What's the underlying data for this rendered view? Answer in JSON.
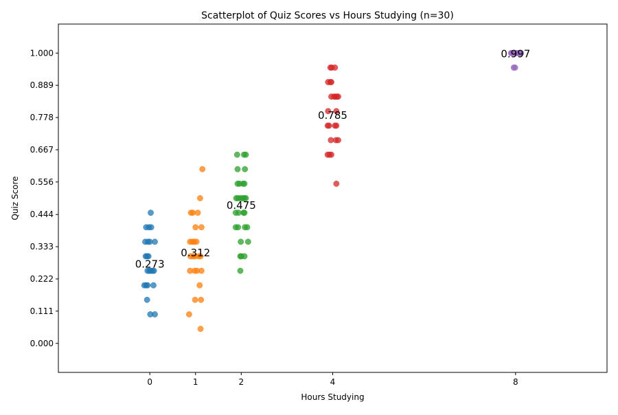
{
  "chart_data": {
    "type": "scatter",
    "title": "Scatterplot of Quiz Scores vs Hours Studying (n=30)",
    "xlabel": "Hours Studying",
    "ylabel": "Quiz Score",
    "xlim": [
      -2,
      10
    ],
    "ylim": [
      -0.1,
      1.1
    ],
    "xticks": [
      0,
      1,
      2,
      4,
      8
    ],
    "yticks": [
      0,
      0.111,
      0.222,
      0.333,
      0.444,
      0.556,
      0.667,
      0.778,
      0.889,
      1.0
    ],
    "ytick_labels": [
      "0.000",
      "0.111",
      "0.222",
      "0.333",
      "0.444",
      "0.556",
      "0.667",
      "0.778",
      "0.889",
      "1.000"
    ],
    "grid": false,
    "series": [
      {
        "x": 0,
        "color": "#1f77b4",
        "mean_label": "0.273",
        "mean": 0.273,
        "points": [
          {
            "x": 0.02,
            "y": 0.45
          },
          {
            "x": -0.08,
            "y": 0.4
          },
          {
            "x": -0.02,
            "y": 0.4
          },
          {
            "x": 0.03,
            "y": 0.4
          },
          {
            "x": -0.1,
            "y": 0.35
          },
          {
            "x": -0.04,
            "y": 0.35
          },
          {
            "x": 0.0,
            "y": 0.35
          },
          {
            "x": 0.11,
            "y": 0.35
          },
          {
            "x": -0.09,
            "y": 0.3
          },
          {
            "x": -0.06,
            "y": 0.3
          },
          {
            "x": -0.03,
            "y": 0.3
          },
          {
            "x": -0.05,
            "y": 0.25
          },
          {
            "x": -0.01,
            "y": 0.25
          },
          {
            "x": 0.02,
            "y": 0.25
          },
          {
            "x": 0.06,
            "y": 0.25
          },
          {
            "x": 0.09,
            "y": 0.25
          },
          {
            "x": -0.12,
            "y": 0.2
          },
          {
            "x": -0.08,
            "y": 0.2
          },
          {
            "x": -0.05,
            "y": 0.2
          },
          {
            "x": 0.08,
            "y": 0.2
          },
          {
            "x": -0.06,
            "y": 0.15
          },
          {
            "x": 0.01,
            "y": 0.1
          },
          {
            "x": 0.11,
            "y": 0.1
          }
        ]
      },
      {
        "x": 1,
        "color": "#ff7f0e",
        "mean_label": "0.312",
        "mean": 0.312,
        "points": [
          {
            "x": 1.15,
            "y": 0.6
          },
          {
            "x": 1.1,
            "y": 0.5
          },
          {
            "x": 0.9,
            "y": 0.45
          },
          {
            "x": 0.94,
            "y": 0.45
          },
          {
            "x": 1.05,
            "y": 0.45
          },
          {
            "x": 1.0,
            "y": 0.4
          },
          {
            "x": 1.13,
            "y": 0.4
          },
          {
            "x": 0.88,
            "y": 0.35
          },
          {
            "x": 0.93,
            "y": 0.35
          },
          {
            "x": 0.97,
            "y": 0.35
          },
          {
            "x": 1.02,
            "y": 0.35
          },
          {
            "x": 0.89,
            "y": 0.3
          },
          {
            "x": 0.95,
            "y": 0.3
          },
          {
            "x": 0.99,
            "y": 0.3
          },
          {
            "x": 1.07,
            "y": 0.3
          },
          {
            "x": 1.11,
            "y": 0.3
          },
          {
            "x": 0.88,
            "y": 0.25
          },
          {
            "x": 0.98,
            "y": 0.25
          },
          {
            "x": 1.03,
            "y": 0.25
          },
          {
            "x": 1.13,
            "y": 0.25
          },
          {
            "x": 1.09,
            "y": 0.2
          },
          {
            "x": 0.99,
            "y": 0.15
          },
          {
            "x": 1.12,
            "y": 0.15
          },
          {
            "x": 0.86,
            "y": 0.1
          },
          {
            "x": 1.11,
            "y": 0.05
          }
        ]
      },
      {
        "x": 2,
        "color": "#2ca02c",
        "mean_label": "0.475",
        "mean": 0.475,
        "points": [
          {
            "x": 1.91,
            "y": 0.65
          },
          {
            "x": 2.06,
            "y": 0.65
          },
          {
            "x": 2.1,
            "y": 0.65
          },
          {
            "x": 1.92,
            "y": 0.6
          },
          {
            "x": 2.08,
            "y": 0.6
          },
          {
            "x": 1.92,
            "y": 0.55
          },
          {
            "x": 1.96,
            "y": 0.55
          },
          {
            "x": 2.04,
            "y": 0.55
          },
          {
            "x": 2.07,
            "y": 0.55
          },
          {
            "x": 1.89,
            "y": 0.5
          },
          {
            "x": 1.93,
            "y": 0.5
          },
          {
            "x": 1.98,
            "y": 0.5
          },
          {
            "x": 2.03,
            "y": 0.5
          },
          {
            "x": 2.07,
            "y": 0.5
          },
          {
            "x": 2.1,
            "y": 0.5
          },
          {
            "x": 1.88,
            "y": 0.45
          },
          {
            "x": 1.94,
            "y": 0.45
          },
          {
            "x": 2.05,
            "y": 0.45
          },
          {
            "x": 2.07,
            "y": 0.45
          },
          {
            "x": 1.88,
            "y": 0.4
          },
          {
            "x": 1.93,
            "y": 0.4
          },
          {
            "x": 2.08,
            "y": 0.4
          },
          {
            "x": 2.13,
            "y": 0.4
          },
          {
            "x": 1.99,
            "y": 0.35
          },
          {
            "x": 2.15,
            "y": 0.35
          },
          {
            "x": 1.98,
            "y": 0.3
          },
          {
            "x": 2.0,
            "y": 0.3
          },
          {
            "x": 2.07,
            "y": 0.3
          },
          {
            "x": 1.98,
            "y": 0.25
          }
        ]
      },
      {
        "x": 4,
        "color": "#d62728",
        "mean_label": "0.785",
        "mean": 0.785,
        "points": [
          {
            "x": 3.95,
            "y": 0.95
          },
          {
            "x": 3.98,
            "y": 0.95
          },
          {
            "x": 4.05,
            "y": 0.95
          },
          {
            "x": 3.9,
            "y": 0.9
          },
          {
            "x": 3.95,
            "y": 0.9
          },
          {
            "x": 3.97,
            "y": 0.9
          },
          {
            "x": 3.97,
            "y": 0.85
          },
          {
            "x": 4.03,
            "y": 0.85
          },
          {
            "x": 4.06,
            "y": 0.85
          },
          {
            "x": 4.09,
            "y": 0.85
          },
          {
            "x": 4.12,
            "y": 0.85
          },
          {
            "x": 3.9,
            "y": 0.8
          },
          {
            "x": 4.08,
            "y": 0.8
          },
          {
            "x": 3.89,
            "y": 0.75
          },
          {
            "x": 3.92,
            "y": 0.75
          },
          {
            "x": 4.05,
            "y": 0.75
          },
          {
            "x": 4.08,
            "y": 0.75
          },
          {
            "x": 3.96,
            "y": 0.7
          },
          {
            "x": 4.07,
            "y": 0.7
          },
          {
            "x": 4.12,
            "y": 0.7
          },
          {
            "x": 3.89,
            "y": 0.65
          },
          {
            "x": 3.93,
            "y": 0.65
          },
          {
            "x": 3.97,
            "y": 0.65
          },
          {
            "x": 4.08,
            "y": 0.55
          }
        ]
      },
      {
        "x": 8,
        "color": "#9467bd",
        "mean_label": "0.997",
        "mean": 0.997,
        "points": [
          {
            "x": 7.9,
            "y": 1.0
          },
          {
            "x": 7.94,
            "y": 1.0
          },
          {
            "x": 7.97,
            "y": 1.0
          },
          {
            "x": 8.0,
            "y": 1.0
          },
          {
            "x": 8.03,
            "y": 1.0
          },
          {
            "x": 8.06,
            "y": 1.0
          },
          {
            "x": 8.09,
            "y": 1.0
          },
          {
            "x": 8.12,
            "y": 1.0
          },
          {
            "x": 7.92,
            "y": 1.0
          },
          {
            "x": 8.08,
            "y": 1.0
          },
          {
            "x": 7.96,
            "y": 0.95
          },
          {
            "x": 7.99,
            "y": 0.95
          }
        ]
      }
    ]
  }
}
